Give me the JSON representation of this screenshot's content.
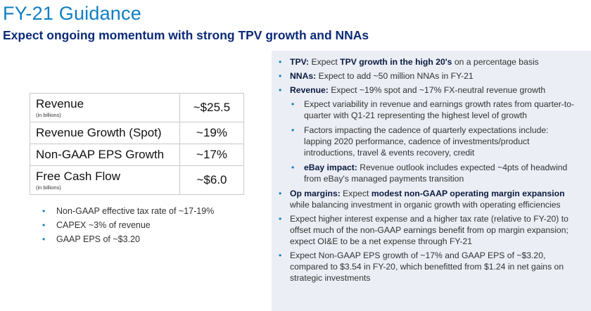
{
  "title": "FY-21 Guidance",
  "subtitle": "Expect ongoing momentum with strong TPV growth and NNAs",
  "metrics": [
    {
      "label": "Revenue",
      "sub": "(in billions)",
      "value": "~$25.5"
    },
    {
      "label": "Revenue Growth (Spot)",
      "sub": "",
      "value": "~19%"
    },
    {
      "label": "Non-GAAP EPS Growth",
      "sub": "",
      "value": "~17%"
    },
    {
      "label": "Free Cash Flow",
      "sub": "(in billions)",
      "value": "~$6.0"
    }
  ],
  "left_bullets": [
    "Non-GAAP effective tax rate of ~17-19%",
    "CAPEX ~3% of revenue",
    "GAAP EPS of ~$3.20"
  ],
  "panel": {
    "tpv": {
      "label": "TPV:",
      "pre": " Expect ",
      "bold": "TPV growth in the high 20's",
      "post": " on a percentage basis"
    },
    "nnas": {
      "label": "NNAs:",
      "text": " Expect to add ~50 million NNAs in FY-21"
    },
    "revenue": {
      "label": "Revenue:",
      "text": " Expect ~19% spot and ~17% FX-neutral revenue growth",
      "sub1": "Expect variability in revenue and earnings growth rates from quarter-to-quarter with Q1-21 representing the highest level of growth",
      "sub2": "Factors impacting the cadence of quarterly expectations include: lapping 2020 performance, cadence of investments/product introductions, travel & events recovery, credit",
      "sub3_label": "eBay impact:",
      "sub3_text": " Revenue outlook includes expected ~4pts of headwind from eBay's managed payments transition"
    },
    "op": {
      "label": "Op margins:",
      "pre": " Expect ",
      "bold": "modest non-GAAP operating margin expansion",
      "post": " while balancing investment in organic growth with operating efficiencies"
    },
    "interest": "Expect higher interest expense and a higher tax rate (relative to FY-20) to offset much of the non-GAAP earnings benefit from op margin expansion; expect OI&E to be a net expense through FY-21",
    "eps": "Expect Non-GAAP EPS growth of ~17% and GAAP EPS of ~$3.20, compared to $3.54 in FY-20, which benefitted from $1.24 in net gains on strategic investments"
  }
}
